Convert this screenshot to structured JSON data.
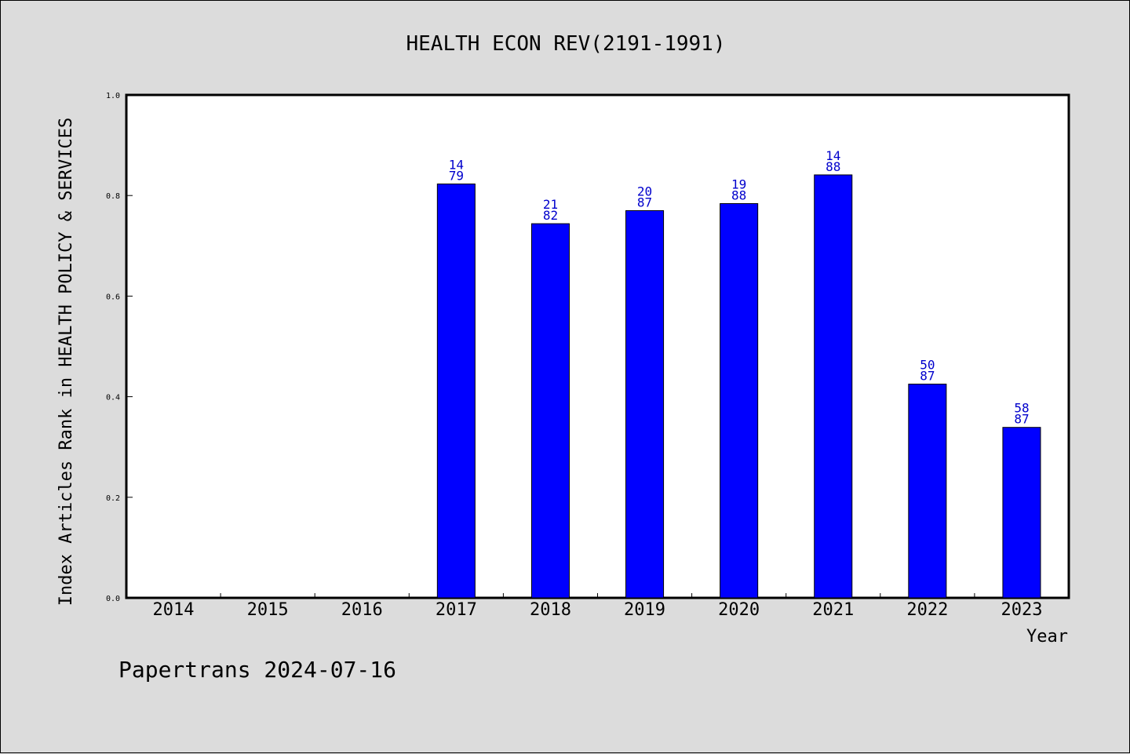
{
  "chart_data": {
    "type": "bar",
    "title": "HEALTH ECON REV(2191-1991)",
    "xlabel": "Year",
    "ylabel": "Index Articles Rank in HEALTH POLICY & SERVICES",
    "ylim": [
      0,
      1.0
    ],
    "yticks": [
      "0.0",
      "0.2",
      "0.4",
      "0.6",
      "0.8",
      "1.0"
    ],
    "categories": [
      "2014",
      "2015",
      "2016",
      "2017",
      "2018",
      "2019",
      "2020",
      "2021",
      "2022",
      "2023"
    ],
    "values": [
      null,
      null,
      null,
      0.823,
      0.744,
      0.77,
      0.784,
      0.841,
      0.425,
      0.339
    ],
    "labels_top": [
      "",
      "",
      "",
      "14",
      "21",
      "20",
      "19",
      "14",
      "50",
      "58"
    ],
    "labels_bottom": [
      "",
      "",
      "",
      "79",
      "82",
      "87",
      "88",
      "88",
      "87",
      "87"
    ],
    "bar_color": "#0000ff",
    "label_color": "#0000cc",
    "grid": false,
    "legend": "none"
  },
  "footer": {
    "text": "Papertrans 2024-07-16"
  }
}
